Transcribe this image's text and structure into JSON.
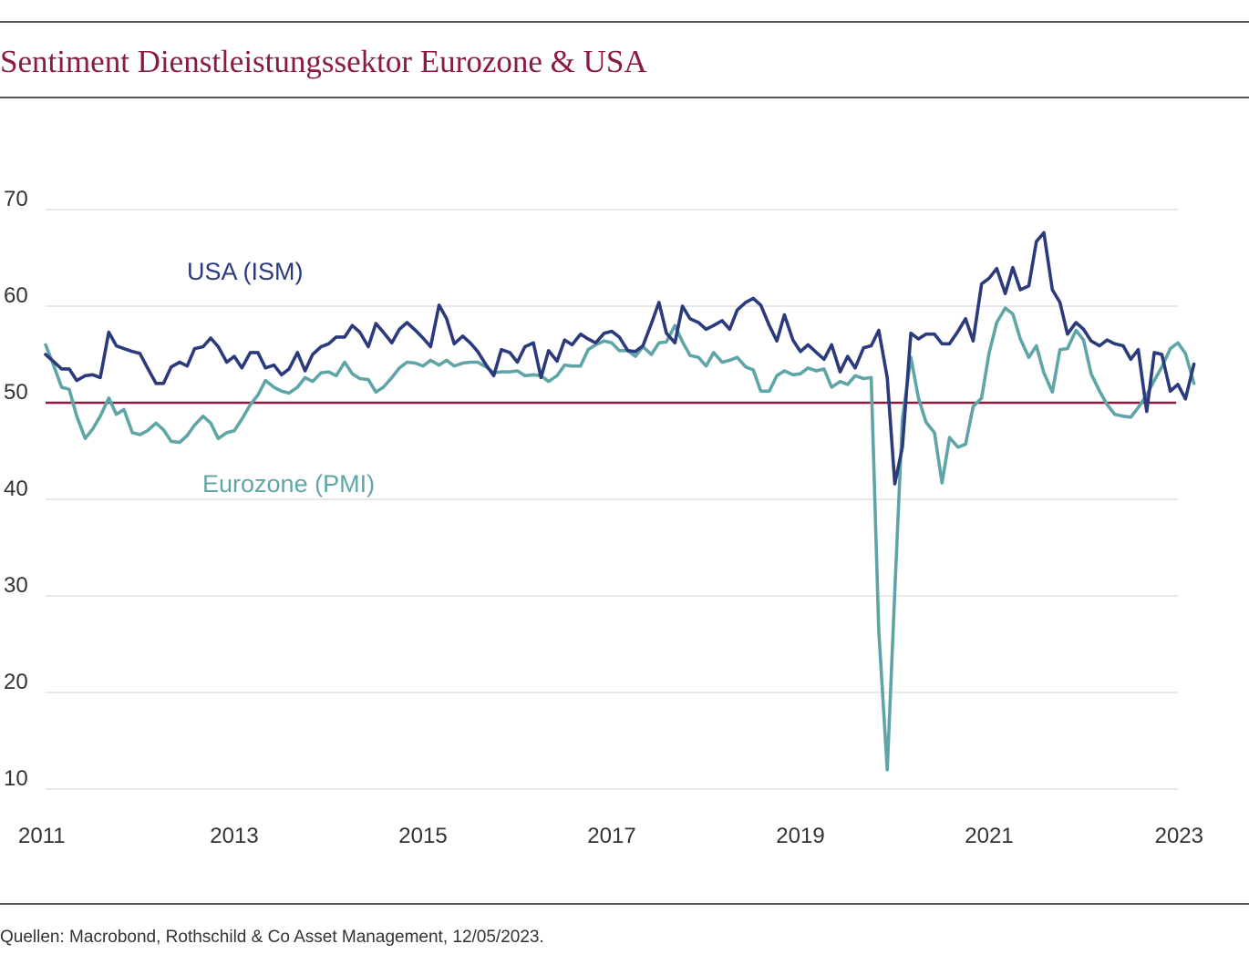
{
  "title": "Sentiment Dienstleistungssektor Eurozone & USA",
  "source": "Quellen: Macrobond, Rothschild & Co Asset Management, 12/05/2023.",
  "colors": {
    "title": "#8b1a3c",
    "usa": "#2b3a7c",
    "eurozone": "#5fa5a8",
    "threshold": "#8b1a3c",
    "grid": "#d0d0d0"
  },
  "chart_data": {
    "type": "line",
    "title": "Sentiment Dienstleistungssektor Eurozone & USA",
    "xlabel": "",
    "ylabel": "",
    "xlim": [
      2011,
      2023
    ],
    "ylim": [
      10,
      70
    ],
    "x_ticks": [
      "2011",
      "2013",
      "2015",
      "2017",
      "2019",
      "2021",
      "2023"
    ],
    "y_ticks": [
      "10",
      "20",
      "30",
      "40",
      "50",
      "60",
      "70"
    ],
    "grid": true,
    "reference_line": 50,
    "series": [
      {
        "name": "USA (ISM)",
        "color": "#2b3a7c",
        "points": [
          [
            2011.0,
            55.0
          ],
          [
            2011.08,
            54.3
          ],
          [
            2011.17,
            53.5
          ],
          [
            2011.25,
            53.5
          ],
          [
            2011.33,
            52.3
          ],
          [
            2011.42,
            52.8
          ],
          [
            2011.5,
            52.9
          ],
          [
            2011.58,
            52.6
          ],
          [
            2011.67,
            57.3
          ],
          [
            2011.75,
            55.9
          ],
          [
            2011.83,
            55.6
          ],
          [
            2011.92,
            55.3
          ],
          [
            2012.0,
            55.1
          ],
          [
            2012.08,
            53.6
          ],
          [
            2012.17,
            52.0
          ],
          [
            2012.25,
            52.0
          ],
          [
            2012.33,
            53.7
          ],
          [
            2012.42,
            54.2
          ],
          [
            2012.5,
            53.8
          ],
          [
            2012.58,
            55.6
          ],
          [
            2012.67,
            55.8
          ],
          [
            2012.75,
            56.7
          ],
          [
            2012.83,
            55.8
          ],
          [
            2012.92,
            54.2
          ],
          [
            2013.0,
            54.8
          ],
          [
            2013.08,
            53.6
          ],
          [
            2013.17,
            55.2
          ],
          [
            2013.25,
            55.2
          ],
          [
            2013.33,
            53.6
          ],
          [
            2013.42,
            53.9
          ],
          [
            2013.5,
            52.9
          ],
          [
            2013.58,
            53.5
          ],
          [
            2013.67,
            55.2
          ],
          [
            2013.75,
            53.3
          ],
          [
            2013.83,
            55.0
          ],
          [
            2013.92,
            55.8
          ],
          [
            2014.0,
            56.1
          ],
          [
            2014.08,
            56.8
          ],
          [
            2014.17,
            56.8
          ],
          [
            2014.25,
            58.0
          ],
          [
            2014.33,
            57.3
          ],
          [
            2014.42,
            55.8
          ],
          [
            2014.5,
            58.2
          ],
          [
            2014.58,
            57.3
          ],
          [
            2014.67,
            56.2
          ],
          [
            2014.75,
            57.6
          ],
          [
            2014.83,
            58.3
          ],
          [
            2014.92,
            57.5
          ],
          [
            2015.0,
            56.7
          ],
          [
            2015.08,
            55.8
          ],
          [
            2015.17,
            60.1
          ],
          [
            2015.25,
            58.7
          ],
          [
            2015.33,
            56.1
          ],
          [
            2015.42,
            56.9
          ],
          [
            2015.5,
            56.2
          ],
          [
            2015.58,
            55.3
          ],
          [
            2015.67,
            53.9
          ],
          [
            2015.75,
            52.8
          ],
          [
            2015.83,
            55.5
          ],
          [
            2015.92,
            55.2
          ],
          [
            2016.0,
            54.2
          ],
          [
            2016.08,
            55.8
          ],
          [
            2016.17,
            56.2
          ],
          [
            2016.25,
            52.6
          ],
          [
            2016.33,
            55.4
          ],
          [
            2016.42,
            54.3
          ],
          [
            2016.5,
            56.5
          ],
          [
            2016.58,
            56.0
          ],
          [
            2016.67,
            57.1
          ],
          [
            2016.75,
            56.6
          ],
          [
            2016.83,
            56.2
          ],
          [
            2016.92,
            57.2
          ],
          [
            2017.0,
            57.4
          ],
          [
            2017.08,
            56.8
          ],
          [
            2017.17,
            55.4
          ],
          [
            2017.25,
            55.3
          ],
          [
            2017.33,
            55.9
          ],
          [
            2017.42,
            58.2
          ],
          [
            2017.5,
            60.4
          ],
          [
            2017.58,
            57.2
          ],
          [
            2017.67,
            56.2
          ],
          [
            2017.75,
            60.0
          ],
          [
            2017.83,
            58.7
          ],
          [
            2017.92,
            58.3
          ],
          [
            2018.0,
            57.6
          ],
          [
            2018.08,
            58.0
          ],
          [
            2018.17,
            58.5
          ],
          [
            2018.25,
            57.6
          ],
          [
            2018.33,
            59.6
          ],
          [
            2018.42,
            60.4
          ],
          [
            2018.5,
            60.8
          ],
          [
            2018.58,
            60.1
          ],
          [
            2018.67,
            58.0
          ],
          [
            2018.75,
            56.4
          ],
          [
            2018.83,
            59.1
          ],
          [
            2018.92,
            56.5
          ],
          [
            2019.0,
            55.3
          ],
          [
            2019.08,
            56.0
          ],
          [
            2019.17,
            55.2
          ],
          [
            2019.25,
            54.5
          ],
          [
            2019.33,
            56.0
          ],
          [
            2019.42,
            53.2
          ],
          [
            2019.5,
            54.8
          ],
          [
            2019.58,
            53.6
          ],
          [
            2019.67,
            55.7
          ],
          [
            2019.75,
            55.9
          ],
          [
            2019.83,
            57.5
          ],
          [
            2019.92,
            52.6
          ],
          [
            2020.0,
            41.6
          ],
          [
            2020.08,
            45.4
          ],
          [
            2020.17,
            57.2
          ],
          [
            2020.25,
            56.6
          ],
          [
            2020.33,
            57.1
          ],
          [
            2020.42,
            57.1
          ],
          [
            2020.5,
            56.1
          ],
          [
            2020.58,
            56.1
          ],
          [
            2020.67,
            57.4
          ],
          [
            2020.75,
            58.7
          ],
          [
            2020.83,
            56.4
          ],
          [
            2020.92,
            62.3
          ],
          [
            2021.0,
            62.9
          ],
          [
            2021.08,
            63.9
          ],
          [
            2021.17,
            61.3
          ],
          [
            2021.25,
            64.0
          ],
          [
            2021.33,
            61.7
          ],
          [
            2021.42,
            62.1
          ],
          [
            2021.5,
            66.7
          ],
          [
            2021.58,
            67.6
          ],
          [
            2021.67,
            61.7
          ],
          [
            2021.75,
            60.4
          ],
          [
            2021.83,
            57.1
          ],
          [
            2021.92,
            58.3
          ],
          [
            2022.0,
            57.6
          ],
          [
            2022.08,
            56.4
          ],
          [
            2022.17,
            55.9
          ],
          [
            2022.25,
            56.5
          ],
          [
            2022.33,
            56.1
          ],
          [
            2022.42,
            55.9
          ],
          [
            2022.5,
            54.5
          ],
          [
            2022.58,
            55.5
          ],
          [
            2022.67,
            49.1
          ],
          [
            2022.75,
            55.2
          ],
          [
            2022.83,
            55.0
          ],
          [
            2022.92,
            51.2
          ],
          [
            2023.0,
            51.9
          ],
          [
            2023.08,
            50.4
          ],
          [
            2023.17,
            54.0
          ]
        ]
      },
      {
        "name": "Eurozone (PMI)",
        "color": "#5fa5a8",
        "points": [
          [
            2011.0,
            56.0
          ],
          [
            2011.08,
            54.0
          ],
          [
            2011.17,
            51.6
          ],
          [
            2011.25,
            51.4
          ],
          [
            2011.33,
            48.6
          ],
          [
            2011.42,
            46.3
          ],
          [
            2011.5,
            47.3
          ],
          [
            2011.58,
            48.6
          ],
          [
            2011.67,
            50.5
          ],
          [
            2011.75,
            48.8
          ],
          [
            2011.83,
            49.3
          ],
          [
            2011.92,
            46.9
          ],
          [
            2012.0,
            46.7
          ],
          [
            2012.08,
            47.1
          ],
          [
            2012.17,
            47.9
          ],
          [
            2012.25,
            47.2
          ],
          [
            2012.33,
            46.0
          ],
          [
            2012.42,
            45.9
          ],
          [
            2012.5,
            46.6
          ],
          [
            2012.58,
            47.7
          ],
          [
            2012.67,
            48.6
          ],
          [
            2012.75,
            47.9
          ],
          [
            2012.83,
            46.3
          ],
          [
            2012.92,
            46.9
          ],
          [
            2013.0,
            47.1
          ],
          [
            2013.08,
            48.3
          ],
          [
            2013.17,
            49.8
          ],
          [
            2013.25,
            50.8
          ],
          [
            2013.33,
            52.3
          ],
          [
            2013.42,
            51.6
          ],
          [
            2013.5,
            51.2
          ],
          [
            2013.58,
            51.0
          ],
          [
            2013.67,
            51.6
          ],
          [
            2013.75,
            52.6
          ],
          [
            2013.83,
            52.2
          ],
          [
            2013.92,
            53.1
          ],
          [
            2014.0,
            53.2
          ],
          [
            2014.08,
            52.8
          ],
          [
            2014.17,
            54.2
          ],
          [
            2014.25,
            53.0
          ],
          [
            2014.33,
            52.5
          ],
          [
            2014.42,
            52.4
          ],
          [
            2014.5,
            51.1
          ],
          [
            2014.58,
            51.6
          ],
          [
            2014.67,
            52.6
          ],
          [
            2014.75,
            53.6
          ],
          [
            2014.83,
            54.2
          ],
          [
            2014.92,
            54.1
          ],
          [
            2015.0,
            53.8
          ],
          [
            2015.08,
            54.4
          ],
          [
            2015.17,
            53.9
          ],
          [
            2015.25,
            54.4
          ],
          [
            2015.33,
            53.8
          ],
          [
            2015.42,
            54.1
          ],
          [
            2015.5,
            54.2
          ],
          [
            2015.58,
            54.2
          ],
          [
            2015.67,
            53.7
          ],
          [
            2015.75,
            53.1
          ],
          [
            2015.83,
            53.2
          ],
          [
            2015.92,
            53.2
          ],
          [
            2016.0,
            53.3
          ],
          [
            2016.08,
            52.8
          ],
          [
            2016.17,
            52.9
          ],
          [
            2016.25,
            52.8
          ],
          [
            2016.33,
            52.2
          ],
          [
            2016.42,
            52.8
          ],
          [
            2016.5,
            53.9
          ],
          [
            2016.58,
            53.8
          ],
          [
            2016.67,
            53.8
          ],
          [
            2016.75,
            55.5
          ],
          [
            2016.83,
            56.0
          ],
          [
            2016.92,
            56.4
          ],
          [
            2017.0,
            56.2
          ],
          [
            2017.08,
            55.4
          ],
          [
            2017.17,
            55.4
          ],
          [
            2017.25,
            54.8
          ],
          [
            2017.33,
            55.8
          ],
          [
            2017.42,
            55.0
          ],
          [
            2017.5,
            56.2
          ],
          [
            2017.58,
            56.3
          ],
          [
            2017.67,
            58.0
          ],
          [
            2017.75,
            56.3
          ],
          [
            2017.83,
            54.9
          ],
          [
            2017.92,
            54.7
          ],
          [
            2018.0,
            53.8
          ],
          [
            2018.08,
            55.2
          ],
          [
            2018.17,
            54.2
          ],
          [
            2018.25,
            54.4
          ],
          [
            2018.33,
            54.7
          ],
          [
            2018.42,
            53.7
          ],
          [
            2018.5,
            53.4
          ],
          [
            2018.58,
            51.2
          ],
          [
            2018.67,
            51.2
          ],
          [
            2018.75,
            52.8
          ],
          [
            2018.83,
            53.3
          ],
          [
            2018.92,
            52.9
          ],
          [
            2019.0,
            53.0
          ],
          [
            2019.08,
            53.6
          ],
          [
            2019.17,
            53.3
          ],
          [
            2019.25,
            53.5
          ],
          [
            2019.33,
            51.6
          ],
          [
            2019.42,
            52.2
          ],
          [
            2019.5,
            51.9
          ],
          [
            2019.58,
            52.8
          ],
          [
            2019.67,
            52.5
          ],
          [
            2019.75,
            52.6
          ],
          [
            2019.83,
            26.4
          ],
          [
            2019.92,
            12.0
          ],
          [
            2020.0,
            30.5
          ],
          [
            2020.08,
            48.3
          ],
          [
            2020.17,
            54.7
          ],
          [
            2020.25,
            50.5
          ],
          [
            2020.33,
            48.0
          ],
          [
            2020.42,
            46.9
          ],
          [
            2020.5,
            41.7
          ],
          [
            2020.58,
            46.4
          ],
          [
            2020.67,
            45.4
          ],
          [
            2020.75,
            45.7
          ],
          [
            2020.83,
            49.6
          ],
          [
            2020.92,
            50.5
          ],
          [
            2021.0,
            55.2
          ],
          [
            2021.08,
            58.3
          ],
          [
            2021.17,
            59.8
          ],
          [
            2021.25,
            59.2
          ],
          [
            2021.33,
            56.6
          ],
          [
            2021.42,
            54.7
          ],
          [
            2021.5,
            55.9
          ],
          [
            2021.58,
            53.1
          ],
          [
            2021.67,
            51.1
          ],
          [
            2021.75,
            55.5
          ],
          [
            2021.83,
            55.6
          ],
          [
            2021.92,
            57.5
          ],
          [
            2022.0,
            56.5
          ],
          [
            2022.08,
            53.0
          ],
          [
            2022.17,
            51.2
          ],
          [
            2022.25,
            49.8
          ],
          [
            2022.33,
            48.8
          ],
          [
            2022.42,
            48.6
          ],
          [
            2022.5,
            48.5
          ],
          [
            2022.58,
            49.5
          ],
          [
            2022.67,
            50.8
          ],
          [
            2022.75,
            52.3
          ],
          [
            2022.83,
            53.7
          ],
          [
            2022.92,
            55.6
          ],
          [
            2023.0,
            56.2
          ],
          [
            2023.08,
            55.1
          ],
          [
            2023.17,
            52.0
          ]
        ]
      }
    ],
    "annotations": [
      {
        "text": "USA (ISM)",
        "series": "USA (ISM)"
      },
      {
        "text": "Eurozone (PMI)",
        "series": "Eurozone (PMI)"
      }
    ]
  }
}
